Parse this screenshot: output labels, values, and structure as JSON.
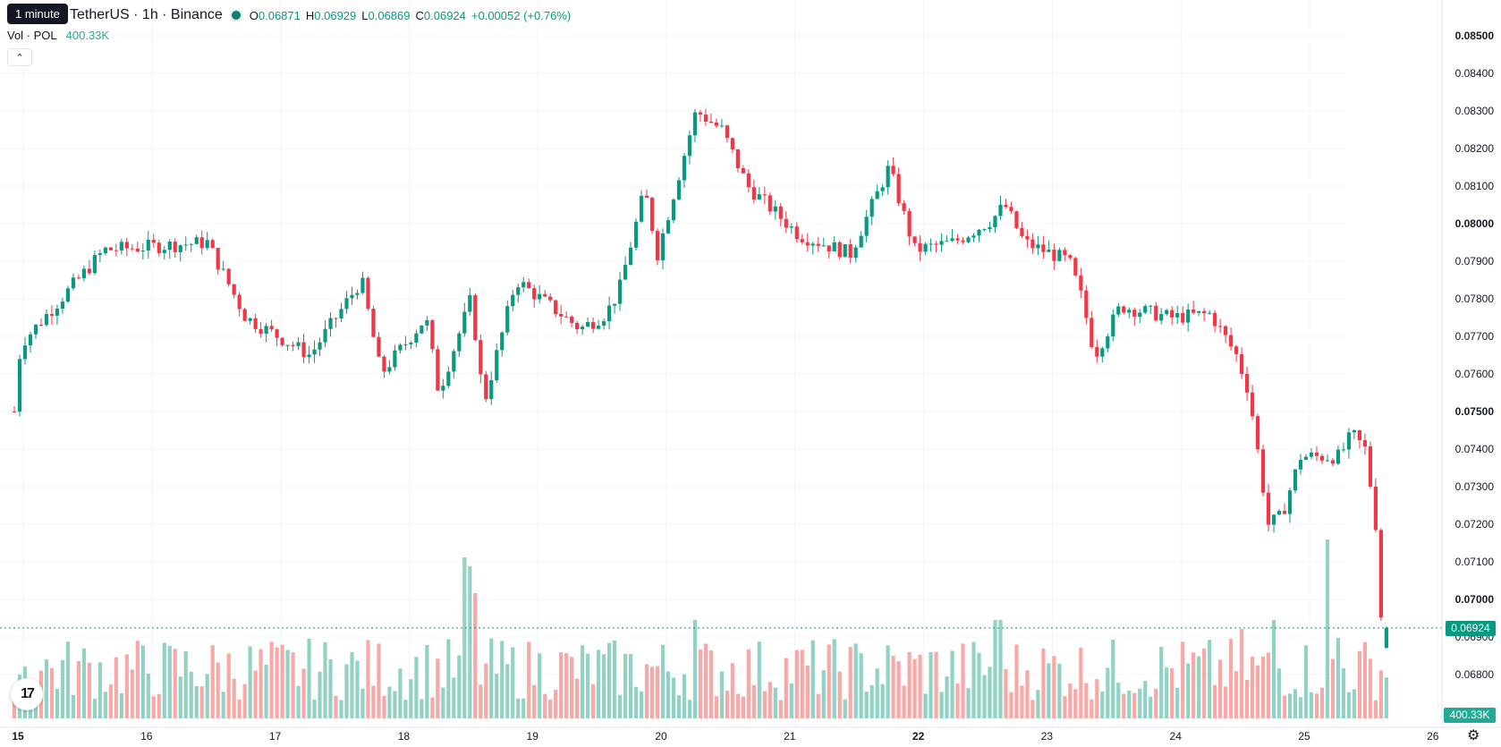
{
  "legend": {
    "tooltip": "1 minute",
    "symbol": "TetherUS · 1h · Binance",
    "open_label": "O",
    "open": "0.06871",
    "high_label": "H",
    "high": "0.06929",
    "low_label": "L",
    "low": "0.06869",
    "close_label": "C",
    "close": "0.06924",
    "change": "+0.00052 (+0.76%)"
  },
  "volume_legend": {
    "label": "Vol · POL",
    "value": "400.33K"
  },
  "collapse_icon": "chevron-up-icon",
  "logo": "tradingview-logo",
  "settings_icon": "gear-icon",
  "last_price_badge": "0.06924",
  "last_volume_badge": "400.33K",
  "colors": {
    "up": "#089981",
    "down": "#f23645",
    "up_volume": "#92d2c5",
    "down_volume": "#f7a9a7",
    "grid": "#f0f3fa"
  },
  "chart_data": {
    "type": "candlestick",
    "x_ticks": [
      "15",
      "16",
      "17",
      "18",
      "19",
      "20",
      "21",
      "22",
      "23",
      "24",
      "25",
      "26"
    ],
    "bold_x_ticks": [
      "15",
      "22"
    ],
    "y_ticks": [
      "0.08500",
      "0.08400",
      "0.08300",
      "0.08200",
      "0.08100",
      "0.08000",
      "0.07900",
      "0.07800",
      "0.07700",
      "0.07600",
      "0.07500",
      "0.07400",
      "0.07300",
      "0.07200",
      "0.07100",
      "0.07000",
      "0.06900",
      "0.06800"
    ],
    "bold_y_ticks": [
      "0.08500",
      "0.08000",
      "0.07500",
      "0.07000"
    ],
    "ylim": [
      0.0678,
      0.0857
    ],
    "last_price": 0.06924,
    "key_points": [
      {
        "day": 15.0,
        "price": 0.075
      },
      {
        "day": 15.05,
        "price": 0.0768
      },
      {
        "day": 15.7,
        "price": 0.0793
      },
      {
        "day": 16.5,
        "price": 0.0795
      },
      {
        "day": 16.8,
        "price": 0.0775
      },
      {
        "day": 17.3,
        "price": 0.0765
      },
      {
        "day": 17.7,
        "price": 0.0785
      },
      {
        "day": 17.85,
        "price": 0.076
      },
      {
        "day": 18.2,
        "price": 0.0775
      },
      {
        "day": 18.3,
        "price": 0.0755
      },
      {
        "day": 18.55,
        "price": 0.078
      },
      {
        "day": 18.65,
        "price": 0.0752
      },
      {
        "day": 18.9,
        "price": 0.0785
      },
      {
        "day": 19.4,
        "price": 0.0772
      },
      {
        "day": 19.6,
        "price": 0.0776
      },
      {
        "day": 19.7,
        "price": 0.0782
      },
      {
        "day": 19.9,
        "price": 0.0809
      },
      {
        "day": 20.0,
        "price": 0.0792
      },
      {
        "day": 20.3,
        "price": 0.083
      },
      {
        "day": 20.5,
        "price": 0.0825
      },
      {
        "day": 20.7,
        "price": 0.081
      },
      {
        "day": 21.1,
        "price": 0.0797
      },
      {
        "day": 21.5,
        "price": 0.0792
      },
      {
        "day": 21.8,
        "price": 0.0815
      },
      {
        "day": 22.0,
        "price": 0.0793
      },
      {
        "day": 22.3,
        "price": 0.0795
      },
      {
        "day": 22.6,
        "price": 0.0801
      },
      {
        "day": 22.7,
        "price": 0.0805
      },
      {
        "day": 22.85,
        "price": 0.0795
      },
      {
        "day": 23.2,
        "price": 0.079
      },
      {
        "day": 23.3,
        "price": 0.078
      },
      {
        "day": 23.4,
        "price": 0.0765
      },
      {
        "day": 23.6,
        "price": 0.0778
      },
      {
        "day": 24.0,
        "price": 0.0775
      },
      {
        "day": 24.3,
        "price": 0.0776
      },
      {
        "day": 24.5,
        "price": 0.0765
      },
      {
        "day": 24.6,
        "price": 0.0755
      },
      {
        "day": 24.75,
        "price": 0.072
      },
      {
        "day": 24.85,
        "price": 0.0722
      },
      {
        "day": 25.0,
        "price": 0.0738
      },
      {
        "day": 25.3,
        "price": 0.0738
      },
      {
        "day": 25.4,
        "price": 0.0744
      },
      {
        "day": 25.5,
        "price": 0.074
      },
      {
        "day": 25.58,
        "price": 0.0722
      },
      {
        "day": 25.64,
        "price": 0.0687
      },
      {
        "day": 25.67,
        "price": 0.0692
      }
    ],
    "volume_spikes": [
      {
        "day": 18.5,
        "rel": 0.9,
        "dir": "up"
      },
      {
        "day": 18.55,
        "rel": 0.85,
        "dir": "down"
      },
      {
        "day": 18.6,
        "rel": 0.7,
        "dir": "down"
      },
      {
        "day": 20.3,
        "rel": 0.55,
        "dir": "up"
      },
      {
        "day": 22.65,
        "rel": 0.55,
        "dir": "up"
      },
      {
        "day": 24.55,
        "rel": 0.5,
        "dir": "down"
      },
      {
        "day": 24.8,
        "rel": 0.55,
        "dir": "up"
      },
      {
        "day": 25.2,
        "rel": 1.0,
        "dir": "up"
      },
      {
        "day": 25.3,
        "rel": 0.45,
        "dir": "down"
      }
    ]
  }
}
